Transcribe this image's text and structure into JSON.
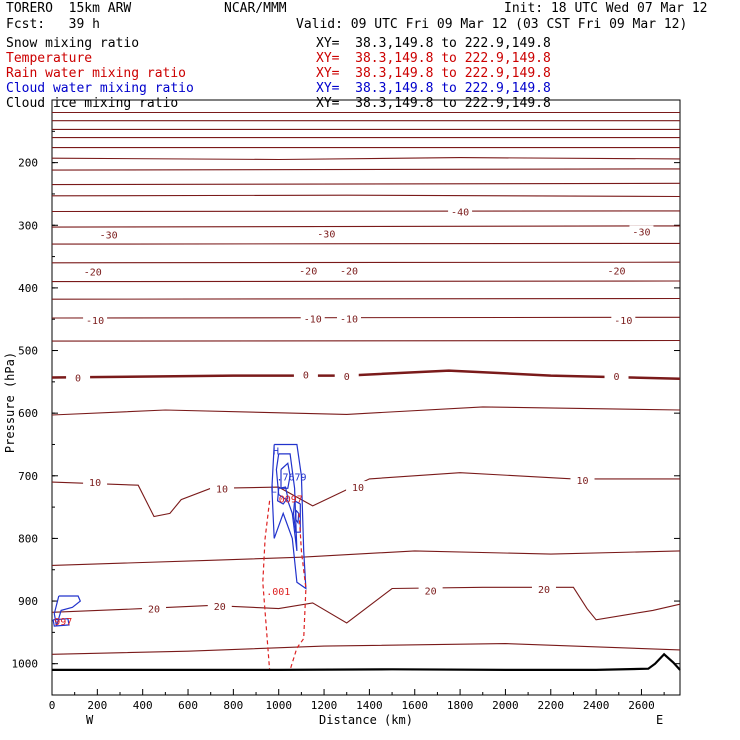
{
  "header": {
    "model": "TORERO  15km ARW",
    "center": "NCAR/MMM",
    "init": "Init: 18 UTC Wed 07 Mar 12",
    "fcst": "Fcst:   39 h",
    "valid": "Valid: 09 UTC Fri 09 Mar 12 (03 CST Fri 09 Mar 12)"
  },
  "fields": [
    {
      "name": "Snow mixing ratio",
      "xy": "XY=  38.3,149.8 to 222.9,149.8",
      "color": "#000000"
    },
    {
      "name": "Temperature",
      "xy": "XY=  38.3,149.8 to 222.9,149.8",
      "color": "#cc0000"
    },
    {
      "name": "Rain water mixing ratio",
      "xy": "XY=  38.3,149.8 to 222.9,149.8",
      "color": "#cc0000"
    },
    {
      "name": "Cloud water mixing ratio",
      "xy": "XY=  38.3,149.8 to 222.9,149.8",
      "color": "#0000cc"
    },
    {
      "name": "Cloud ice mixing ratio",
      "xy": "XY=  38.3,149.8 to 222.9,149.8",
      "color": "#000000"
    }
  ],
  "colors": {
    "temperature": "#7a1a1a",
    "rain": "#dd2222",
    "cloud_water": "#2233cc",
    "terrain": "#000000"
  },
  "chart_data": {
    "type": "line",
    "title": "",
    "xlabel": "Distance (km)",
    "ylabel": "Pressure (hPa)",
    "xlim": [
      0,
      2770
    ],
    "ylim": [
      1050,
      100
    ],
    "xticks": [
      0,
      200,
      400,
      600,
      800,
      1000,
      1200,
      1400,
      1600,
      1800,
      2000,
      2200,
      2400,
      2600
    ],
    "yticks": [
      200,
      300,
      400,
      500,
      600,
      700,
      800,
      900,
      1000
    ],
    "x_end_labels": {
      "left": "W",
      "right": "E"
    },
    "temperature_isotherms": [
      {
        "p": [
          [
            0,
            120
          ],
          [
            2770,
            120
          ]
        ]
      },
      {
        "p": [
          [
            0,
            133
          ],
          [
            2770,
            133
          ]
        ]
      },
      {
        "p": [
          [
            0,
            147
          ],
          [
            2770,
            147
          ]
        ]
      },
      {
        "p": [
          [
            0,
            160
          ],
          [
            2770,
            160
          ]
        ]
      },
      {
        "p": [
          [
            0,
            176
          ],
          [
            2770,
            176
          ]
        ]
      },
      {
        "p": [
          [
            0,
            193
          ],
          [
            1000,
            195
          ],
          [
            1800,
            192
          ],
          [
            2770,
            194
          ]
        ]
      },
      {
        "p": [
          [
            0,
            212
          ],
          [
            2770,
            210
          ]
        ]
      },
      {
        "p": [
          [
            0,
            235
          ],
          [
            2770,
            233
          ]
        ]
      },
      {
        "p": [
          [
            0,
            253
          ],
          [
            1300,
            252
          ],
          [
            2770,
            254
          ]
        ]
      },
      {
        "p": [
          [
            0,
            278
          ],
          [
            2770,
            277
          ]
        ]
      },
      {
        "p": [
          [
            0,
            303
          ],
          [
            2770,
            301
          ]
        ]
      },
      {
        "p": [
          [
            0,
            330
          ],
          [
            2770,
            329
          ]
        ]
      },
      {
        "p": [
          [
            0,
            360
          ],
          [
            2770,
            359
          ]
        ]
      },
      {
        "p": [
          [
            0,
            390
          ],
          [
            2770,
            389
          ]
        ]
      },
      {
        "p": [
          [
            0,
            418
          ],
          [
            2770,
            417
          ]
        ]
      },
      {
        "p": [
          [
            0,
            448
          ],
          [
            2770,
            447
          ]
        ]
      },
      {
        "p": [
          [
            0,
            485
          ],
          [
            2770,
            484
          ]
        ]
      },
      {
        "p": [
          [
            0,
            543
          ],
          [
            800,
            540
          ],
          [
            1300,
            540
          ],
          [
            1750,
            532
          ],
          [
            2200,
            540
          ],
          [
            2770,
            545
          ]
        ],
        "bold": true
      },
      {
        "p": [
          [
            0,
            603
          ],
          [
            500,
            595
          ],
          [
            1300,
            602
          ],
          [
            1900,
            590
          ],
          [
            2770,
            595
          ]
        ]
      },
      {
        "p": [
          [
            0,
            710
          ],
          [
            380,
            715
          ],
          [
            450,
            765
          ],
          [
            520,
            760
          ],
          [
            570,
            738
          ],
          [
            700,
            720
          ],
          [
            1000,
            718
          ],
          [
            1150,
            748
          ],
          [
            1400,
            705
          ],
          [
            1800,
            695
          ],
          [
            2300,
            705
          ],
          [
            2770,
            705
          ]
        ]
      },
      {
        "p": [
          [
            0,
            843
          ],
          [
            700,
            835
          ],
          [
            1100,
            830
          ],
          [
            1600,
            820
          ],
          [
            2200,
            825
          ],
          [
            2770,
            820
          ]
        ]
      },
      {
        "p": [
          [
            0,
            918
          ],
          [
            400,
            912
          ],
          [
            700,
            907
          ],
          [
            1000,
            912
          ],
          [
            1150,
            903
          ],
          [
            1300,
            935
          ],
          [
            1500,
            880
          ],
          [
            1900,
            878
          ],
          [
            2300,
            878
          ],
          [
            2360,
            912
          ],
          [
            2400,
            930
          ],
          [
            2650,
            915
          ],
          [
            2770,
            905
          ]
        ]
      },
      {
        "p": [
          [
            0,
            985
          ],
          [
            600,
            980
          ],
          [
            1200,
            972
          ],
          [
            2000,
            968
          ],
          [
            2770,
            978
          ]
        ]
      }
    ],
    "temperature_labels": [
      {
        "text": "-40",
        "x": 1800,
        "y": 278
      },
      {
        "text": "-30",
        "x": 250,
        "y": 315
      },
      {
        "text": "-30",
        "x": 1210,
        "y": 313
      },
      {
        "text": "-30",
        "x": 2600,
        "y": 310
      },
      {
        "text": "-20",
        "x": 180,
        "y": 374
      },
      {
        "text": "-20",
        "x": 1130,
        "y": 372
      },
      {
        "text": "-20",
        "x": 1310,
        "y": 372
      },
      {
        "text": "-20",
        "x": 2490,
        "y": 372
      },
      {
        "text": "-10",
        "x": 190,
        "y": 451
      },
      {
        "text": "-10",
        "x": 1150,
        "y": 449
      },
      {
        "text": "-10",
        "x": 1310,
        "y": 449
      },
      {
        "text": "-10",
        "x": 2520,
        "y": 451
      },
      {
        "text": "0",
        "x": 115,
        "y": 543
      },
      {
        "text": "0",
        "x": 1120,
        "y": 538
      },
      {
        "text": "0",
        "x": 1300,
        "y": 541
      },
      {
        "text": "0",
        "x": 2490,
        "y": 541
      },
      {
        "text": "10",
        "x": 190,
        "y": 710
      },
      {
        "text": "10",
        "x": 750,
        "y": 720
      },
      {
        "text": "10",
        "x": 1350,
        "y": 718
      },
      {
        "text": "10",
        "x": 2340,
        "y": 707
      },
      {
        "text": "20",
        "x": 450,
        "y": 912
      },
      {
        "text": "20",
        "x": 740,
        "y": 908
      },
      {
        "text": "20",
        "x": 1670,
        "y": 883
      },
      {
        "text": "20",
        "x": 2170,
        "y": 881
      }
    ],
    "terrain": [
      [
        0,
        1010
      ],
      [
        1000,
        1010
      ],
      [
        1500,
        1009
      ],
      [
        2000,
        1010
      ],
      [
        2400,
        1010
      ],
      [
        2630,
        1008
      ],
      [
        2660,
        1000
      ],
      [
        2700,
        985
      ],
      [
        2740,
        998
      ],
      [
        2770,
        1010
      ]
    ],
    "cloud_water": [
      [
        [
          980,
          650
        ],
        [
          1080,
          650
        ],
        [
          1100,
          700
        ],
        [
          1110,
          820
        ],
        [
          1120,
          880
        ],
        [
          1080,
          870
        ],
        [
          1060,
          800
        ],
        [
          1020,
          760
        ],
        [
          980,
          800
        ],
        [
          970,
          720
        ],
        [
          980,
          650
        ]
      ],
      [
        [
          1000,
          665
        ],
        [
          1050,
          665
        ],
        [
          1070,
          720
        ],
        [
          1080,
          820
        ],
        [
          1060,
          760
        ],
        [
          1040,
          740
        ],
        [
          1000,
          730
        ],
        [
          990,
          690
        ],
        [
          1000,
          665
        ]
      ],
      [
        [
          1010,
          690
        ],
        [
          1040,
          680
        ],
        [
          1050,
          700
        ],
        [
          1040,
          720
        ],
        [
          1010,
          720
        ],
        [
          1010,
          690
        ]
      ],
      [
        [
          1000,
          720
        ],
        [
          1030,
          718
        ],
        [
          1040,
          735
        ],
        [
          1020,
          745
        ],
        [
          995,
          740
        ],
        [
          1000,
          720
        ]
      ],
      [
        [
          1070,
          740
        ],
        [
          1095,
          745
        ],
        [
          1095,
          790
        ],
        [
          1075,
          790
        ],
        [
          1065,
          760
        ],
        [
          1070,
          740
        ]
      ],
      [
        [
          1076,
          755
        ],
        [
          1088,
          760
        ],
        [
          1085,
          775
        ],
        [
          1076,
          770
        ],
        [
          1076,
          755
        ]
      ],
      [
        [
          30,
          892
        ],
        [
          115,
          892
        ],
        [
          125,
          900
        ],
        [
          90,
          910
        ],
        [
          40,
          915
        ],
        [
          20,
          940
        ],
        [
          10,
          920
        ],
        [
          30,
          892
        ]
      ],
      [
        [
          5,
          930
        ],
        [
          70,
          928
        ],
        [
          75,
          938
        ],
        [
          10,
          940
        ],
        [
          5,
          930
        ]
      ]
    ],
    "rain": [
      [
        [
          960,
          740
        ],
        [
          940,
          800
        ],
        [
          930,
          870
        ],
        [
          960,
          1010
        ]
      ],
      [
        [
          1090,
          760
        ],
        [
          1100,
          820
        ],
        [
          1120,
          880
        ],
        [
          1110,
          960
        ],
        [
          1080,
          975
        ],
        [
          1050,
          1010
        ]
      ]
    ],
    "field_labels": [
      {
        "text": "H",
        "x": 975,
        "y": 660,
        "series": "cloud_water"
      },
      {
        "text": ".7679",
        "x": 990,
        "y": 701,
        "series": "cloud_water"
      },
      {
        "text": "L",
        "x": 965,
        "y": 720,
        "series": "cloud_water"
      },
      {
        "text": "0097",
        "x": 1000,
        "y": 736,
        "series": "rain"
      },
      {
        "text": ".001",
        "x": 945,
        "y": 884,
        "series": "rain"
      },
      {
        "text": "997",
        "x": 10,
        "y": 932,
        "series": "rain"
      }
    ]
  }
}
